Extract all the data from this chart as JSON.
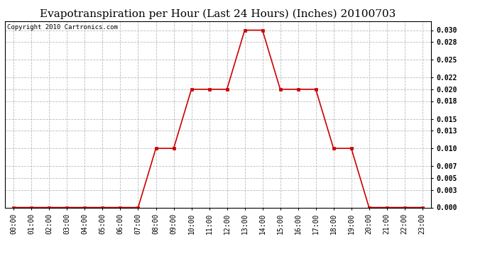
{
  "title": "Evapotranspiration per Hour (Last 24 Hours) (Inches) 20100703",
  "copyright": "Copyright 2010 Cartronics.com",
  "hours": [
    "00:00",
    "01:00",
    "02:00",
    "03:00",
    "04:00",
    "05:00",
    "06:00",
    "07:00",
    "08:00",
    "09:00",
    "10:00",
    "11:00",
    "12:00",
    "13:00",
    "14:00",
    "15:00",
    "16:00",
    "17:00",
    "18:00",
    "19:00",
    "20:00",
    "21:00",
    "22:00",
    "23:00"
  ],
  "values": [
    0.0,
    0.0,
    0.0,
    0.0,
    0.0,
    0.0,
    0.0,
    0.0,
    0.01,
    0.01,
    0.02,
    0.02,
    0.02,
    0.03,
    0.03,
    0.02,
    0.02,
    0.02,
    0.01,
    0.01,
    0.0,
    0.0,
    0.0,
    0.0
  ],
  "line_color": "#cc0000",
  "marker_color": "#cc0000",
  "background_color": "#ffffff",
  "grid_color": "#bbbbbb",
  "ylim": [
    0.0,
    0.0315
  ],
  "yticks": [
    0.0,
    0.003,
    0.005,
    0.007,
    0.01,
    0.013,
    0.015,
    0.018,
    0.02,
    0.022,
    0.025,
    0.028,
    0.03
  ],
  "title_fontsize": 11,
  "copyright_fontsize": 6.5,
  "tick_fontsize": 7
}
